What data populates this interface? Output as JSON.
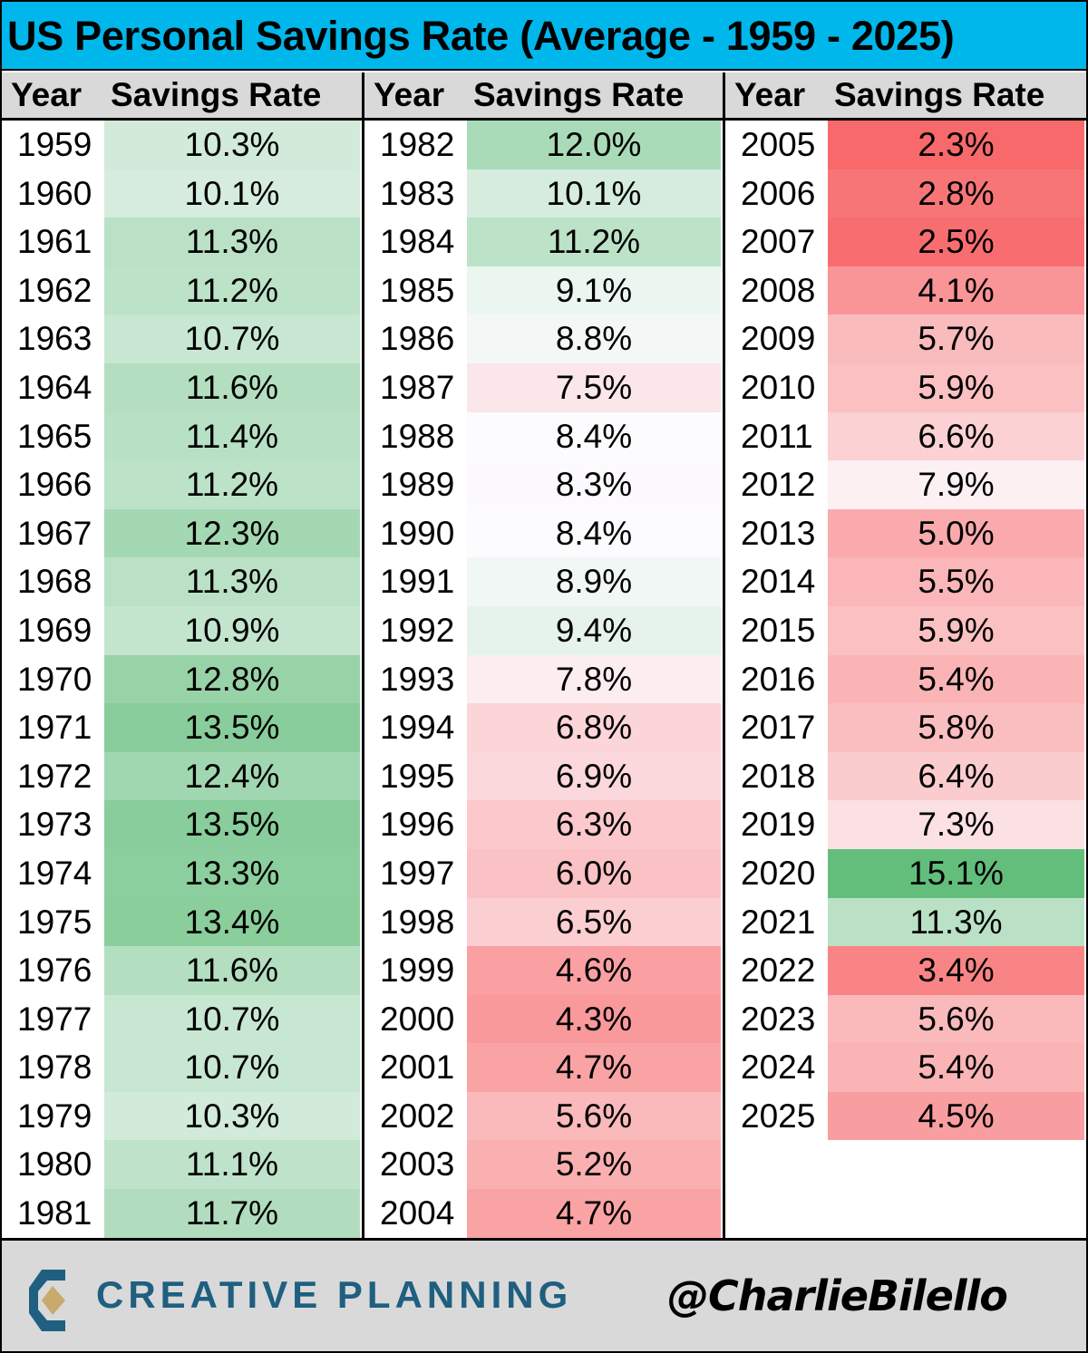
{
  "title": "US Personal Savings Rate (Average - 1959 - 2025)",
  "headers": {
    "year": "Year",
    "rate": "Savings Rate"
  },
  "colors": {
    "title_bg": "#00b7eb",
    "header_bg": "#d9d9d9",
    "green": "#63be7b",
    "white": "#fcfcff",
    "red": "#f8696b",
    "brand": "#1f5f80",
    "logo_gold": "#c8a96e"
  },
  "footer": {
    "brand": "CREATIVE PLANNING",
    "handle": "@CharlieBilello"
  },
  "chart_data": {
    "type": "table",
    "title": "US Personal Savings Rate (Average - 1959 - 2025)",
    "columns": [
      "Year",
      "Savings Rate"
    ],
    "color_scale": {
      "type": "diverging",
      "low": "red",
      "mid": "white",
      "high": "green",
      "min": 2.3,
      "mid_value": 8.4,
      "max": 15.1
    },
    "groups": [
      {
        "rows": [
          {
            "year": "1959",
            "rate": "10.3%"
          },
          {
            "year": "1960",
            "rate": "10.1%"
          },
          {
            "year": "1961",
            "rate": "11.3%"
          },
          {
            "year": "1962",
            "rate": "11.2%"
          },
          {
            "year": "1963",
            "rate": "10.7%"
          },
          {
            "year": "1964",
            "rate": "11.6%"
          },
          {
            "year": "1965",
            "rate": "11.4%"
          },
          {
            "year": "1966",
            "rate": "11.2%"
          },
          {
            "year": "1967",
            "rate": "12.3%"
          },
          {
            "year": "1968",
            "rate": "11.3%"
          },
          {
            "year": "1969",
            "rate": "10.9%"
          },
          {
            "year": "1970",
            "rate": "12.8%"
          },
          {
            "year": "1971",
            "rate": "13.5%"
          },
          {
            "year": "1972",
            "rate": "12.4%"
          },
          {
            "year": "1973",
            "rate": "13.5%"
          },
          {
            "year": "1974",
            "rate": "13.3%"
          },
          {
            "year": "1975",
            "rate": "13.4%"
          },
          {
            "year": "1976",
            "rate": "11.6%"
          },
          {
            "year": "1977",
            "rate": "10.7%"
          },
          {
            "year": "1978",
            "rate": "10.7%"
          },
          {
            "year": "1979",
            "rate": "10.3%"
          },
          {
            "year": "1980",
            "rate": "11.1%"
          },
          {
            "year": "1981",
            "rate": "11.7%"
          }
        ]
      },
      {
        "rows": [
          {
            "year": "1982",
            "rate": "12.0%"
          },
          {
            "year": "1983",
            "rate": "10.1%"
          },
          {
            "year": "1984",
            "rate": "11.2%"
          },
          {
            "year": "1985",
            "rate": "9.1%"
          },
          {
            "year": "1986",
            "rate": "8.8%"
          },
          {
            "year": "1987",
            "rate": "7.5%"
          },
          {
            "year": "1988",
            "rate": "8.4%"
          },
          {
            "year": "1989",
            "rate": "8.3%"
          },
          {
            "year": "1990",
            "rate": "8.4%"
          },
          {
            "year": "1991",
            "rate": "8.9%"
          },
          {
            "year": "1992",
            "rate": "9.4%"
          },
          {
            "year": "1993",
            "rate": "7.8%"
          },
          {
            "year": "1994",
            "rate": "6.8%"
          },
          {
            "year": "1995",
            "rate": "6.9%"
          },
          {
            "year": "1996",
            "rate": "6.3%"
          },
          {
            "year": "1997",
            "rate": "6.0%"
          },
          {
            "year": "1998",
            "rate": "6.5%"
          },
          {
            "year": "1999",
            "rate": "4.6%"
          },
          {
            "year": "2000",
            "rate": "4.3%"
          },
          {
            "year": "2001",
            "rate": "4.7%"
          },
          {
            "year": "2002",
            "rate": "5.6%"
          },
          {
            "year": "2003",
            "rate": "5.2%"
          },
          {
            "year": "2004",
            "rate": "4.7%"
          }
        ]
      },
      {
        "rows": [
          {
            "year": "2005",
            "rate": "2.3%"
          },
          {
            "year": "2006",
            "rate": "2.8%"
          },
          {
            "year": "2007",
            "rate": "2.5%"
          },
          {
            "year": "2008",
            "rate": "4.1%"
          },
          {
            "year": "2009",
            "rate": "5.7%"
          },
          {
            "year": "2010",
            "rate": "5.9%"
          },
          {
            "year": "2011",
            "rate": "6.6%"
          },
          {
            "year": "2012",
            "rate": "7.9%"
          },
          {
            "year": "2013",
            "rate": "5.0%"
          },
          {
            "year": "2014",
            "rate": "5.5%"
          },
          {
            "year": "2015",
            "rate": "5.9%"
          },
          {
            "year": "2016",
            "rate": "5.4%"
          },
          {
            "year": "2017",
            "rate": "5.8%"
          },
          {
            "year": "2018",
            "rate": "6.4%"
          },
          {
            "year": "2019",
            "rate": "7.3%"
          },
          {
            "year": "2020",
            "rate": "15.1%"
          },
          {
            "year": "2021",
            "rate": "11.3%"
          },
          {
            "year": "2022",
            "rate": "3.4%"
          },
          {
            "year": "2023",
            "rate": "5.6%"
          },
          {
            "year": "2024",
            "rate": "5.4%"
          },
          {
            "year": "2025",
            "rate": "4.5%"
          }
        ]
      }
    ]
  }
}
